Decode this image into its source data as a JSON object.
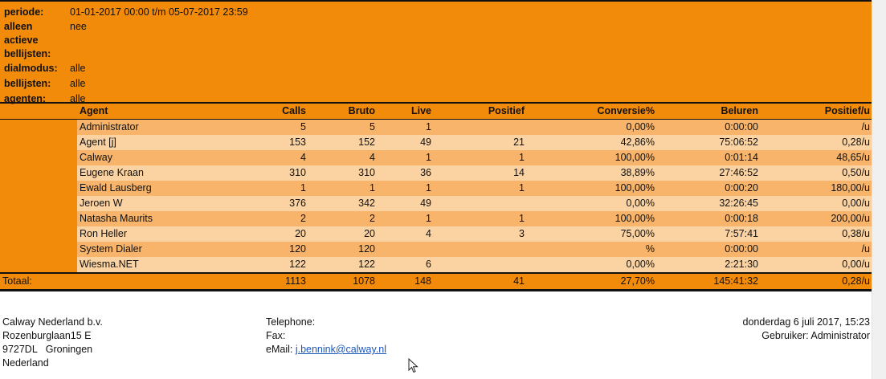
{
  "meta": {
    "periode_label": "periode:",
    "periode_value": "01-01-2017 00:00 t/m 05-07-2017 23:59",
    "alleen_label_1": "alleen",
    "alleen_label_2": "actieve",
    "alleen_label_3": "bellijsten:",
    "alleen_value": "nee",
    "dialmodus_label": "dialmodus:",
    "dialmodus_value": "alle",
    "bellijsten_label": "bellijsten:",
    "bellijsten_value": "alle",
    "agenten_label": "agenten:",
    "agenten_value": "alle"
  },
  "table": {
    "headers": {
      "agent": "Agent",
      "calls": "Calls",
      "bruto": "Bruto",
      "live": "Live",
      "positief": "Positief",
      "conversie": "Conversie%",
      "beluren": "Beluren",
      "positief_u": "Positief/u"
    },
    "rows": [
      {
        "agent": "Administrator",
        "calls": "5",
        "bruto": "5",
        "live": "1",
        "positief": "",
        "conversie": "0,00%",
        "beluren": "0:00:00",
        "positief_u": "/u"
      },
      {
        "agent": "Agent [j]",
        "calls": "153",
        "bruto": "152",
        "live": "49",
        "positief": "21",
        "conversie": "42,86%",
        "beluren": "75:06:52",
        "positief_u": "0,28/u"
      },
      {
        "agent": "Calway",
        "calls": "4",
        "bruto": "4",
        "live": "1",
        "positief": "1",
        "conversie": "100,00%",
        "beluren": "0:01:14",
        "positief_u": "48,65/u"
      },
      {
        "agent": "Eugene Kraan",
        "calls": "310",
        "bruto": "310",
        "live": "36",
        "positief": "14",
        "conversie": "38,89%",
        "beluren": "27:46:52",
        "positief_u": "0,50/u"
      },
      {
        "agent": "Ewald Lausberg",
        "calls": "1",
        "bruto": "1",
        "live": "1",
        "positief": "1",
        "conversie": "100,00%",
        "beluren": "0:00:20",
        "positief_u": "180,00/u"
      },
      {
        "agent": "Jeroen W",
        "calls": "376",
        "bruto": "342",
        "live": "49",
        "positief": "",
        "conversie": "0,00%",
        "beluren": "32:26:45",
        "positief_u": "0,00/u"
      },
      {
        "agent": "Natasha Maurits",
        "calls": "2",
        "bruto": "2",
        "live": "1",
        "positief": "1",
        "conversie": "100,00%",
        "beluren": "0:00:18",
        "positief_u": "200,00/u"
      },
      {
        "agent": "Ron Heller",
        "calls": "20",
        "bruto": "20",
        "live": "4",
        "positief": "3",
        "conversie": "75,00%",
        "beluren": "7:57:41",
        "positief_u": "0,38/u"
      },
      {
        "agent": "System Dialer",
        "calls": "120",
        "bruto": "120",
        "live": "",
        "positief": "",
        "conversie": "%",
        "beluren": "0:00:00",
        "positief_u": "/u"
      },
      {
        "agent": "Wiesma.NET",
        "calls": "122",
        "bruto": "122",
        "live": "6",
        "positief": "",
        "conversie": "0,00%",
        "beluren": "2:21:30",
        "positief_u": "0,00/u"
      }
    ],
    "total": {
      "label": "Totaal:",
      "calls": "1113",
      "bruto": "1078",
      "live": "148",
      "positief": "41",
      "conversie": "27,70%",
      "beluren": "145:41:32",
      "positief_u": "0,28/u"
    }
  },
  "footer": {
    "company": "Calway Nederland b.v.",
    "street": "Rozenburglaan15 E",
    "postal": "9727DL   Groningen",
    "country": "Nederland",
    "telephone_label": "Telephone:",
    "fax_label": "Fax:",
    "email_label": "eMail:",
    "email": "j.bennink@calway.nl",
    "date": "donderdag 6 juli 2017, 15:23",
    "user": "Gebruiker: Administrator"
  }
}
